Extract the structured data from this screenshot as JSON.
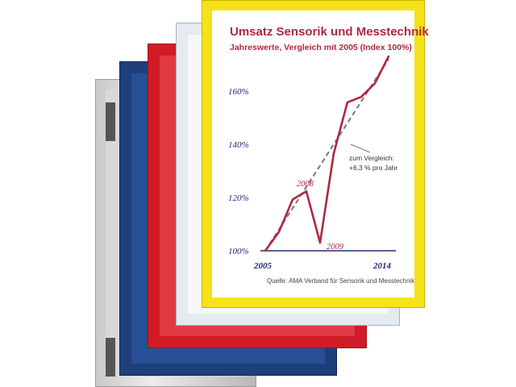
{
  "colors": {
    "frame_gray": "#cfcfcf",
    "frame_blue": "#1d3f7c",
    "frame_red": "#d11b26",
    "frame_white": "#e4eaee",
    "frame_yellow": "#f6e21a",
    "chart_red": "#b0283f",
    "axis_blue": "#1f2d74"
  },
  "chart_data": {
    "type": "line",
    "title": "Umsatz Sensorik und Messtechnik",
    "subtitle": "Jahreswerte, Vergleich mit 2005 (Index 100%)",
    "source": "Quelle: AMA Verband für Sensorik und Messtechnik",
    "x_tick_labels": [
      "2005",
      "2014"
    ],
    "y_tick_labels": [
      "100%",
      "120%",
      "140%",
      "160%"
    ],
    "xlim": [
      2005,
      2014.3
    ],
    "ylim": [
      100,
      172
    ],
    "series": [
      {
        "style": "solid",
        "color": "#b0283f",
        "x": [
          2005,
          2006,
          2007,
          2008,
          2009,
          2010,
          2011,
          2012,
          2013,
          2014
        ],
        "y": [
          100,
          107,
          119,
          122,
          103,
          136,
          155,
          157,
          162,
          172
        ]
      },
      {
        "style": "dashed",
        "color": "#777777",
        "x": [
          2005,
          2014
        ],
        "y": [
          100,
          171
        ]
      }
    ],
    "annotations": {
      "peak_label": "2008",
      "dip_label": "2009",
      "trend_line1": "zum Vergleich:",
      "trend_line2": "+6,3 % pro Jahr"
    },
    "grid": false,
    "legend": "none"
  }
}
